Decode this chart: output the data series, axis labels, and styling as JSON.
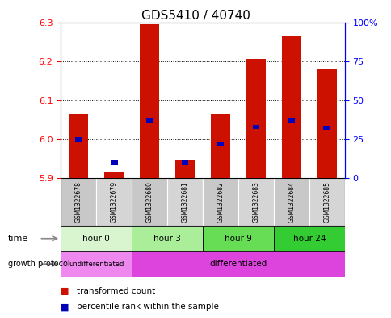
{
  "title": "GDS5410 / 40740",
  "samples": [
    "GSM1322678",
    "GSM1322679",
    "GSM1322680",
    "GSM1322681",
    "GSM1322682",
    "GSM1322683",
    "GSM1322684",
    "GSM1322685"
  ],
  "transformed_count": [
    6.065,
    5.915,
    6.295,
    5.945,
    6.065,
    6.205,
    6.265,
    6.18
  ],
  "percentile_rank": [
    25,
    10,
    37,
    10,
    22,
    33,
    37,
    32
  ],
  "bar_bottom": 5.9,
  "ylim": [
    5.9,
    6.3
  ],
  "yticks_left": [
    5.9,
    6.0,
    6.1,
    6.2,
    6.3
  ],
  "yticks_right": [
    0,
    25,
    50,
    75,
    100
  ],
  "time_groups": [
    {
      "label": "hour 0",
      "start": 0,
      "end": 2,
      "color": "#d8f5d0"
    },
    {
      "label": "hour 3",
      "start": 2,
      "end": 4,
      "color": "#aaee99"
    },
    {
      "label": "hour 9",
      "start": 4,
      "end": 6,
      "color": "#66dd55"
    },
    {
      "label": "hour 24",
      "start": 6,
      "end": 8,
      "color": "#33cc33"
    }
  ],
  "protocol_groups": [
    {
      "label": "undifferentiated",
      "start": 0,
      "end": 2,
      "color": "#ee88ee"
    },
    {
      "label": "differentiated",
      "start": 2,
      "end": 8,
      "color": "#dd44dd"
    }
  ],
  "bar_color": "#cc1100",
  "percentile_color": "#0000bb",
  "legend_items": [
    {
      "label": "transformed count",
      "color": "#cc1100"
    },
    {
      "label": "percentile rank within the sample",
      "color": "#0000bb"
    }
  ],
  "figsize": [
    4.85,
    3.93
  ],
  "dpi": 100
}
